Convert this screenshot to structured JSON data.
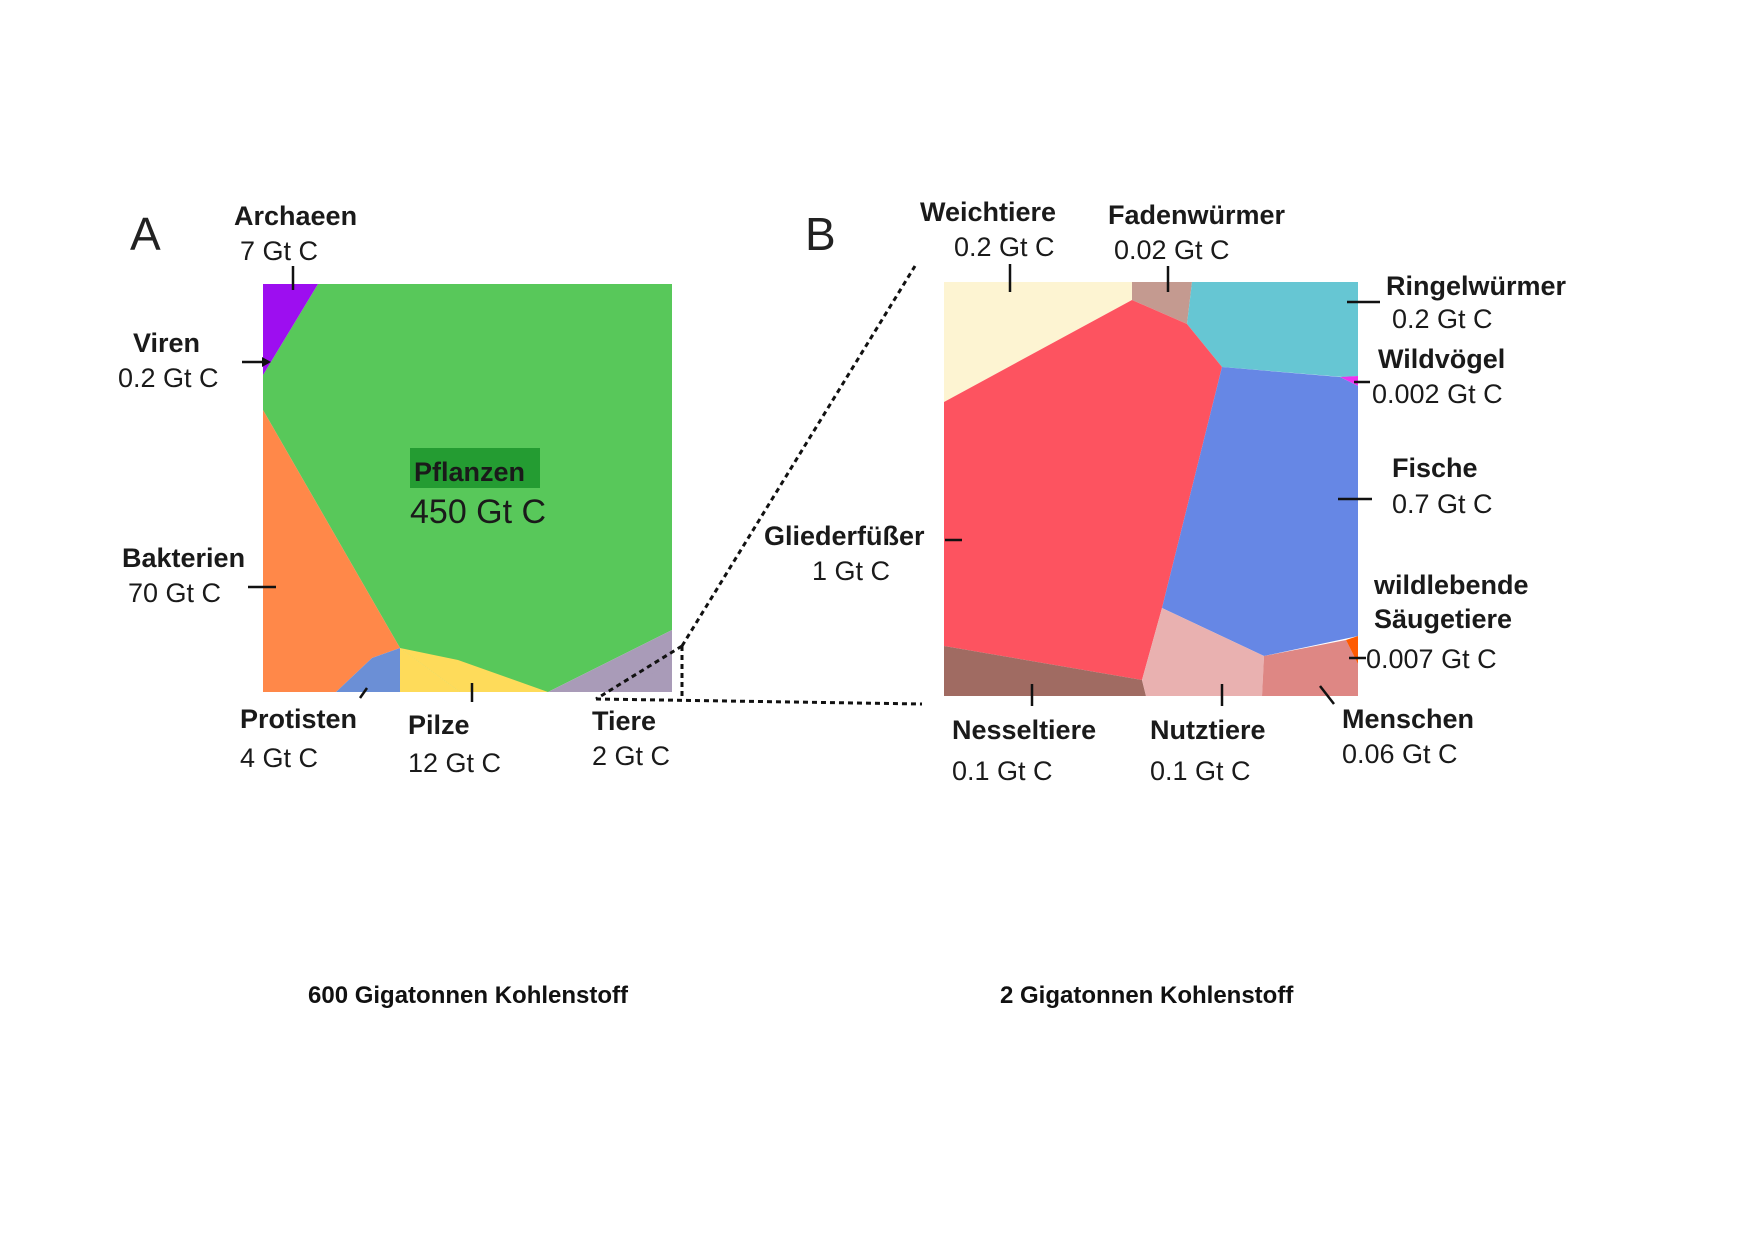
{
  "chart_data": [
    {
      "type": "voronoi treemap",
      "panel_label": "A",
      "caption": "600 Gigatonnen Kohlenstoff",
      "series": [
        {
          "name": "Pflanzen",
          "value_label": "450 Gt C",
          "value": 450,
          "color": "#58c85a"
        },
        {
          "name": "Bakterien",
          "value_label": "70 Gt C",
          "value": 70,
          "color": "#ff8849"
        },
        {
          "name": "Pilze",
          "value_label": "12 Gt C",
          "value": 12,
          "color": "#fedb5a"
        },
        {
          "name": "Archaeen",
          "value_label": "7 Gt C",
          "value": 7,
          "color": "#9d0ef0"
        },
        {
          "name": "Protisten",
          "value_label": "4 Gt C",
          "value": 4,
          "color": "#6b8fd6"
        },
        {
          "name": "Tiere",
          "value_label": "2 Gt C",
          "value": 2,
          "color": "#a99bb8"
        },
        {
          "name": "Viren",
          "value_label": "0.2 Gt C",
          "value": 0.2,
          "color": "#9d0ef0"
        }
      ]
    },
    {
      "type": "voronoi treemap",
      "panel_label": "B",
      "caption": "2 Gigatonnen Kohlenstoff",
      "series": [
        {
          "name": "Gliederfüßer",
          "value_label": "1 Gt C",
          "value": 1,
          "color": "#fd5360"
        },
        {
          "name": "Fische",
          "value_label": "0.7 Gt C",
          "value": 0.7,
          "color": "#6687e5"
        },
        {
          "name": "Weichtiere",
          "value_label": "0.2 Gt C",
          "value": 0.2,
          "color": "#fdf4d2"
        },
        {
          "name": "Ringelwürmer",
          "value_label": "0.2 Gt C",
          "value": 0.2,
          "color": "#66c6d3"
        },
        {
          "name": "Nesseltiere",
          "value_label": "0.1 Gt C",
          "value": 0.1,
          "color": "#a06b62"
        },
        {
          "name": "Nutztiere",
          "value_label": "0.1 Gt C",
          "value": 0.1,
          "color": "#e9b1b0"
        },
        {
          "name": "Menschen",
          "value_label": "0.06 Gt C",
          "value": 0.06,
          "color": "#de8784"
        },
        {
          "name": "Fadenwürmer",
          "value_label": "0.02 Gt C",
          "value": 0.02,
          "color": "#c49a90"
        },
        {
          "name": "wildlebende Säugetiere",
          "name_lines": [
            "wildlebende",
            "Säugetiere"
          ],
          "value_label": "0.007 Gt C",
          "value": 0.007,
          "color": "#ff5a00"
        },
        {
          "name": "Wildvögel",
          "value_label": "0.002 Gt C",
          "value": 0.002,
          "color": "#ee33ee"
        }
      ]
    }
  ]
}
